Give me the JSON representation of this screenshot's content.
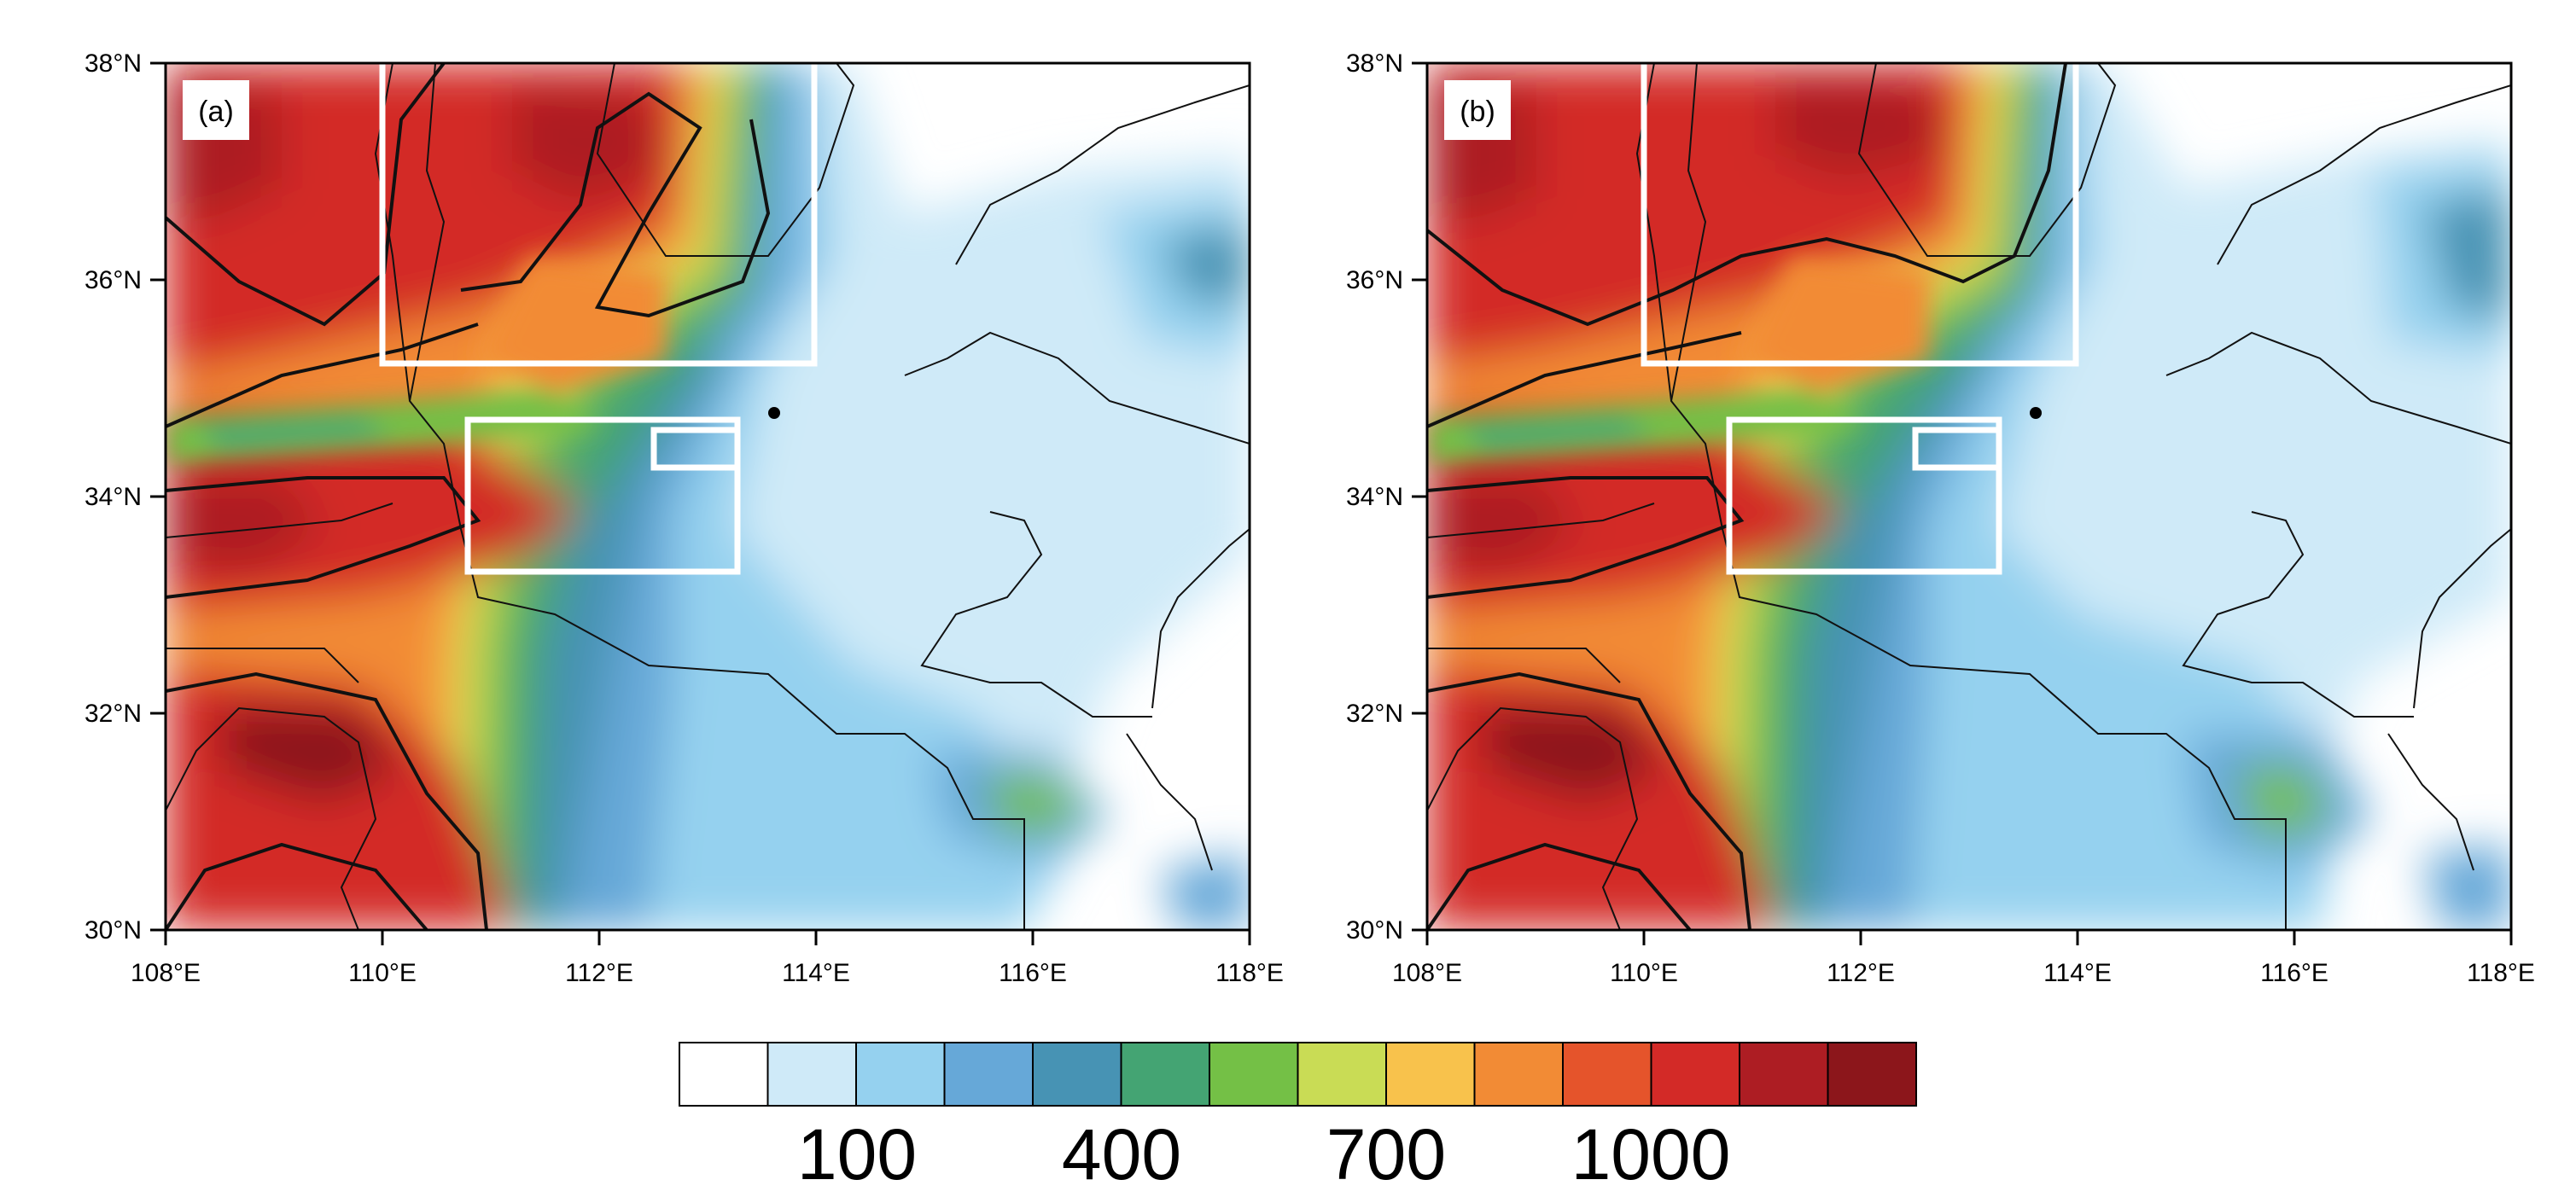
{
  "figure": {
    "panels": [
      {
        "label": "(a)"
      },
      {
        "label": "(b)"
      }
    ],
    "lat_ticks": [
      "30°N",
      "32°N",
      "34°N",
      "36°N",
      "38°N"
    ],
    "lon_ticks": [
      "108°E",
      "110°E",
      "112°E",
      "114°E",
      "116°E",
      "118°E"
    ],
    "lat_range": [
      30,
      38
    ],
    "lon_range": [
      108,
      118
    ],
    "colorbar": {
      "labels": [
        "100",
        "400",
        "700",
        "1000"
      ],
      "colors": [
        "#ffffff",
        "#cfeaf8",
        "#95d1ef",
        "#66a8d8",
        "#4793b4",
        "#44a473",
        "#74c046",
        "#c9dc55",
        "#f8c24c",
        "#f28b35",
        "#e5542b",
        "#d32a27",
        "#ad1d23",
        "#8c161b"
      ]
    },
    "colors": {
      "box_outline": "#ffffff",
      "boundary_lines": "#111111",
      "station_marker": "#000000"
    }
  }
}
